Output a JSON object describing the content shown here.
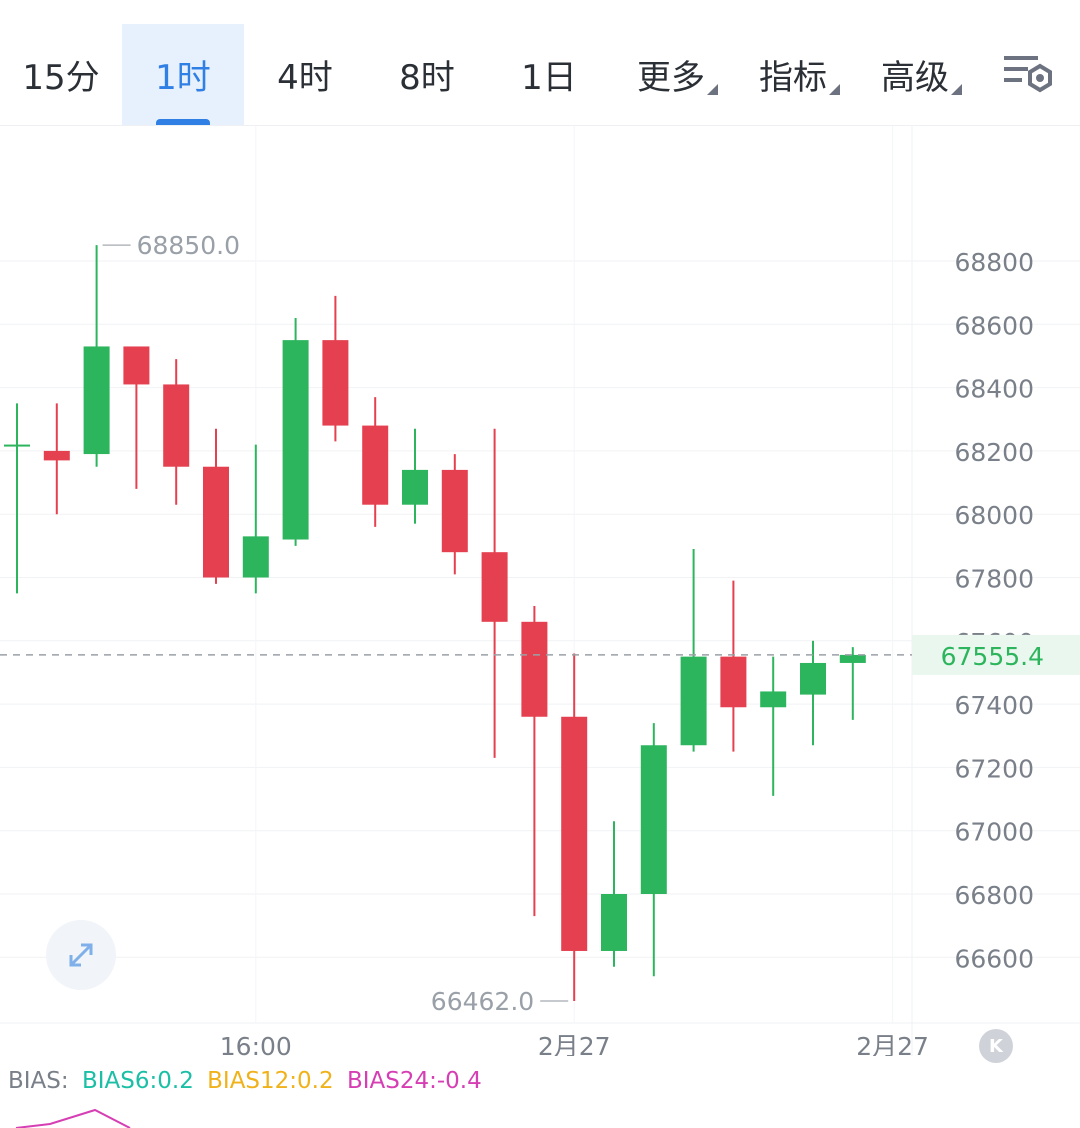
{
  "tabs": [
    {
      "label": "15分",
      "active": false,
      "dropdown": false
    },
    {
      "label": "1时",
      "active": true,
      "dropdown": false
    },
    {
      "label": "4时",
      "active": false,
      "dropdown": false
    },
    {
      "label": "8时",
      "active": false,
      "dropdown": false
    },
    {
      "label": "1日",
      "active": false,
      "dropdown": false
    },
    {
      "label": "更多",
      "active": false,
      "dropdown": true
    },
    {
      "label": "指标",
      "active": false,
      "dropdown": true
    },
    {
      "label": "高级",
      "active": false,
      "dropdown": true
    }
  ],
  "settings_icon": "chart-settings-icon",
  "expand_icon": "expand-arrows-icon",
  "back_icon": "back-to-latest-icon",
  "colors": {
    "up": "#2db55d",
    "down": "#e5404f",
    "accent": "#2f7fe4",
    "current_price": "#2db55d",
    "bias_label": "#7a8089",
    "bias6": "#1bbfa6",
    "bias12": "#f0b21a",
    "bias24": "#d63eb4"
  },
  "bias": {
    "label": "BIAS:",
    "bias6": "BIAS6:0.2",
    "bias12": "BIAS12:0.2",
    "bias24": "BIAS24:-0.4"
  },
  "chart_data": {
    "type": "candlestick",
    "y_ticks": [
      68800,
      68600,
      68400,
      68200,
      68000,
      67800,
      67400,
      67200,
      67000,
      66800,
      66600
    ],
    "y_ticks_partial": [
      67600
    ],
    "ylim": [
      66420,
      69030
    ],
    "x_labels": [
      {
        "label": "16:00",
        "index": 6
      },
      {
        "label": "2月27",
        "index": 14
      },
      {
        "label": "2月27",
        "index": 22
      }
    ],
    "current_price": 67555.4,
    "max_annotation": {
      "label": "68850.0",
      "index": 2
    },
    "min_annotation": {
      "label": "66462.0",
      "index": 14
    },
    "grid": true,
    "candles": [
      {
        "open": 68220,
        "high": 68350,
        "low": 67750,
        "close": 68220
      },
      {
        "open": 68200,
        "high": 68350,
        "low": 68000,
        "close": 68170
      },
      {
        "open": 68190,
        "high": 68850,
        "low": 68150,
        "close": 68530
      },
      {
        "open": 68530,
        "high": 68530,
        "low": 68080,
        "close": 68410
      },
      {
        "open": 68410,
        "high": 68490,
        "low": 68030,
        "close": 68150
      },
      {
        "open": 68150,
        "high": 68270,
        "low": 67780,
        "close": 67800
      },
      {
        "open": 67800,
        "high": 68220,
        "low": 67750,
        "close": 67930
      },
      {
        "open": 67920,
        "high": 68620,
        "low": 67900,
        "close": 68550
      },
      {
        "open": 68550,
        "high": 68690,
        "low": 68230,
        "close": 68280
      },
      {
        "open": 68280,
        "high": 68370,
        "low": 67960,
        "close": 68030
      },
      {
        "open": 68030,
        "high": 68270,
        "low": 67970,
        "close": 68140
      },
      {
        "open": 68140,
        "high": 68190,
        "low": 67810,
        "close": 67880
      },
      {
        "open": 67880,
        "high": 68270,
        "low": 67230,
        "close": 67660
      },
      {
        "open": 67660,
        "high": 67710,
        "low": 66730,
        "close": 67360
      },
      {
        "open": 67360,
        "high": 67560,
        "low": 66462,
        "close": 66620
      },
      {
        "open": 66620,
        "high": 67030,
        "low": 66570,
        "close": 66800
      },
      {
        "open": 66800,
        "high": 67340,
        "low": 66540,
        "close": 67270
      },
      {
        "open": 67270,
        "high": 67890,
        "low": 67250,
        "close": 67550
      },
      {
        "open": 67550,
        "high": 67790,
        "low": 67250,
        "close": 67390
      },
      {
        "open": 67390,
        "high": 67550,
        "low": 67110,
        "close": 67440
      },
      {
        "open": 67430,
        "high": 67600,
        "low": 67270,
        "close": 67530
      },
      {
        "open": 67530,
        "high": 67580,
        "low": 67350,
        "close": 67555.4
      }
    ]
  }
}
